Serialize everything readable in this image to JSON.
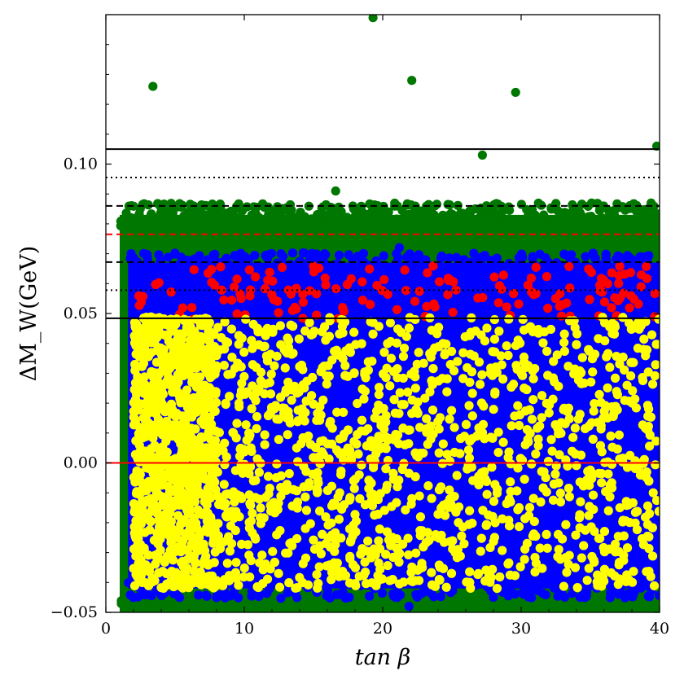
{
  "chart_data": {
    "type": "scatter",
    "title": "",
    "xlabel": "tan β",
    "ylabel": "ΔM_W(GeV)",
    "xlim": [
      0,
      40
    ],
    "ylim": [
      -0.05,
      0.15
    ],
    "x_ticks": [
      0,
      10,
      20,
      30,
      40
    ],
    "x_tick_labels": [
      "0",
      "10",
      "20",
      "30",
      "40"
    ],
    "y_ticks": [
      -0.05,
      0.0,
      0.05,
      0.1
    ],
    "y_tick_labels": [
      "−0.05",
      "0.00",
      "0.05",
      "0.10"
    ],
    "grid": false,
    "legend": "none",
    "colors": {
      "green": "#007700",
      "blue": "#0000ff",
      "red": "#ff0000",
      "yellow": "#ffff00",
      "line_black": "#000000",
      "line_red": "#ff0000"
    },
    "regions": [
      {
        "color": "green",
        "x_range": [
          1.0,
          40
        ],
        "y_range": [
          -0.05,
          0.083
        ]
      },
      {
        "color": "blue",
        "x_range": [
          1.6,
          40
        ],
        "y_range": [
          -0.042,
          0.067
        ]
      },
      {
        "color": "red",
        "x_range": [
          2.2,
          40
        ],
        "y_range": [
          0.048,
          0.066
        ]
      },
      {
        "color": "yellow",
        "x_range": [
          2.0,
          40
        ],
        "y_range": [
          -0.042,
          0.049
        ]
      }
    ],
    "outlier_points": [
      {
        "x": 3.4,
        "y": 0.126,
        "color": "green"
      },
      {
        "x": 19.3,
        "y": 0.149,
        "color": "green"
      },
      {
        "x": 22.1,
        "y": 0.128,
        "color": "green"
      },
      {
        "x": 29.6,
        "y": 0.124,
        "color": "green"
      },
      {
        "x": 27.2,
        "y": 0.103,
        "color": "green"
      },
      {
        "x": 39.8,
        "y": 0.106,
        "color": "green"
      },
      {
        "x": 16.6,
        "y": 0.091,
        "color": "green"
      },
      {
        "x": 6.8,
        "y": 0.085,
        "color": "green"
      },
      {
        "x": 21.2,
        "y": 0.072,
        "color": "blue"
      },
      {
        "x": 21.9,
        "y": -0.048,
        "color": "blue"
      }
    ],
    "hlines": [
      {
        "y": 0.105,
        "color": "line_black",
        "style": "solid"
      },
      {
        "y": 0.0955,
        "color": "line_black",
        "style": "dotted"
      },
      {
        "y": 0.086,
        "color": "line_black",
        "style": "dashed"
      },
      {
        "y": 0.0765,
        "color": "line_red",
        "style": "dashed"
      },
      {
        "y": 0.0672,
        "color": "line_black",
        "style": "dashed"
      },
      {
        "y": 0.0578,
        "color": "line_black",
        "style": "dotted"
      },
      {
        "y": 0.0484,
        "color": "line_black",
        "style": "solid"
      },
      {
        "y": 0.0,
        "color": "line_red",
        "style": "solid"
      }
    ]
  }
}
